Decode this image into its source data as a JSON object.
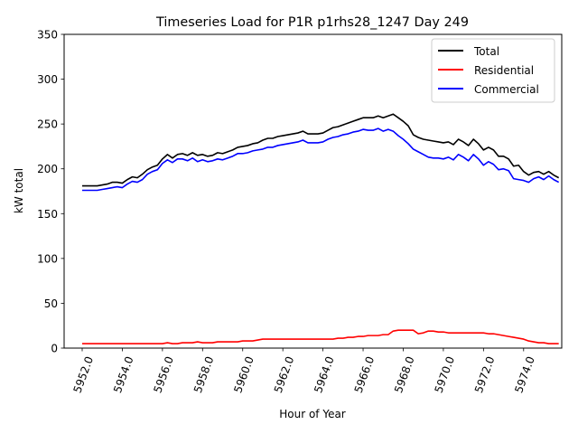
{
  "chart_data": {
    "type": "line",
    "title": "Timeseries Load for P1R p1rhs28_1247  Day 249",
    "xlabel": "Hour of Year",
    "ylabel": "kW total",
    "xlim": [
      5951.1,
      5975.9
    ],
    "ylim": [
      0,
      350
    ],
    "x_ticks": [
      5952,
      5954,
      5956,
      5958,
      5960,
      5962,
      5964,
      5966,
      5968,
      5970,
      5972,
      5974
    ],
    "x_tick_labels": [
      "5952.0",
      "5954.0",
      "5956.0",
      "5958.0",
      "5960.0",
      "5962.0",
      "5964.0",
      "5966.0",
      "5968.0",
      "5970.0",
      "5972.0",
      "5974.0"
    ],
    "y_ticks": [
      0,
      50,
      100,
      150,
      200,
      250,
      300,
      350
    ],
    "y_tick_labels": [
      "0",
      "50",
      "100",
      "150",
      "200",
      "250",
      "300",
      "350"
    ],
    "grid": false,
    "legend_position": "upper right",
    "x": [
      5952.0,
      5952.25,
      5952.5,
      5952.75,
      5953.0,
      5953.25,
      5953.5,
      5953.75,
      5954.0,
      5954.25,
      5954.5,
      5954.75,
      5955.0,
      5955.25,
      5955.5,
      5955.75,
      5956.0,
      5956.25,
      5956.5,
      5956.75,
      5957.0,
      5957.25,
      5957.5,
      5957.75,
      5958.0,
      5958.25,
      5958.5,
      5958.75,
      5959.0,
      5959.25,
      5959.5,
      5959.75,
      5960.0,
      5960.25,
      5960.5,
      5960.75,
      5961.0,
      5961.25,
      5961.5,
      5961.75,
      5962.0,
      5962.25,
      5962.5,
      5962.75,
      5963.0,
      5963.25,
      5963.5,
      5963.75,
      5964.0,
      5964.25,
      5964.5,
      5964.75,
      5965.0,
      5965.25,
      5965.5,
      5965.75,
      5966.0,
      5966.25,
      5966.5,
      5966.75,
      5967.0,
      5967.25,
      5967.5,
      5967.75,
      5968.0,
      5968.25,
      5968.5,
      5968.75,
      5969.0,
      5969.25,
      5969.5,
      5969.75,
      5970.0,
      5970.25,
      5970.5,
      5970.75,
      5971.0,
      5971.25,
      5971.5,
      5971.75,
      5972.0,
      5972.25,
      5972.5,
      5972.75,
      5973.0,
      5973.25,
      5973.5,
      5973.75,
      5974.0,
      5974.25,
      5974.5,
      5974.75,
      5975.0,
      5975.25,
      5975.5,
      5975.75
    ],
    "series": [
      {
        "name": "Total",
        "color": "#000000",
        "values": [
          181,
          181,
          181,
          181,
          182,
          183,
          185,
          185,
          184,
          188,
          191,
          190,
          194,
          199,
          202,
          204,
          211,
          216,
          212,
          216,
          217,
          215,
          218,
          215,
          216,
          214,
          215,
          218,
          217,
          219,
          221,
          224,
          225,
          226,
          228,
          229,
          232,
          234,
          234,
          236,
          237,
          238,
          239,
          240,
          242,
          239,
          239,
          239,
          240,
          243,
          246,
          247,
          249,
          251,
          253,
          255,
          257,
          257,
          257,
          259,
          257,
          259,
          261,
          257,
          253,
          248,
          238,
          235,
          233,
          232,
          231,
          230,
          229,
          230,
          227,
          233,
          230,
          226,
          233,
          228,
          221,
          224,
          221,
          214,
          214,
          211,
          203,
          204,
          197,
          193,
          196,
          197,
          194,
          197,
          193,
          190
        ]
      },
      {
        "name": "Residential",
        "color": "#ff0000",
        "values": [
          5,
          5,
          5,
          5,
          5,
          5,
          5,
          5,
          5,
          5,
          5,
          5,
          5,
          5,
          5,
          5,
          5,
          6,
          5,
          5,
          6,
          6,
          6,
          7,
          6,
          6,
          6,
          7,
          7,
          7,
          7,
          7,
          8,
          8,
          8,
          9,
          10,
          10,
          10,
          10,
          10,
          10,
          10,
          10,
          10,
          10,
          10,
          10,
          10,
          10,
          10,
          11,
          11,
          12,
          12,
          13,
          13,
          14,
          14,
          14,
          15,
          15,
          19,
          20,
          20,
          20,
          20,
          16,
          17,
          19,
          19,
          18,
          18,
          17,
          17,
          17,
          17,
          17,
          17,
          17,
          17,
          16,
          16,
          15,
          14,
          13,
          12,
          11,
          10,
          8,
          7,
          6,
          6,
          5,
          5,
          5
        ]
      },
      {
        "name": "Commercial",
        "color": "#0000ff",
        "values": [
          176,
          176,
          176,
          176,
          177,
          178,
          179,
          180,
          179,
          183,
          186,
          185,
          188,
          194,
          197,
          199,
          206,
          210,
          207,
          211,
          211,
          209,
          212,
          208,
          210,
          208,
          209,
          211,
          210,
          212,
          214,
          217,
          217,
          218,
          220,
          221,
          222,
          224,
          224,
          226,
          227,
          228,
          229,
          230,
          232,
          229,
          229,
          229,
          230,
          233,
          235,
          236,
          238,
          239,
          241,
          242,
          244,
          243,
          243,
          245,
          242,
          244,
          242,
          237,
          233,
          228,
          222,
          219,
          216,
          213,
          212,
          212,
          211,
          213,
          210,
          216,
          213,
          209,
          216,
          211,
          204,
          208,
          205,
          199,
          200,
          198,
          189,
          188,
          187,
          185,
          189,
          191,
          188,
          192,
          188,
          185
        ]
      }
    ]
  }
}
